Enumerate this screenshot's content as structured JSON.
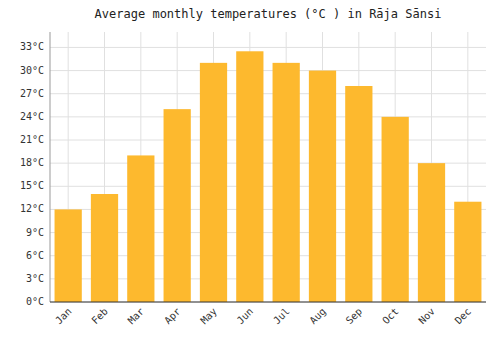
{
  "chart_data": {
    "type": "bar",
    "title": "Average monthly temperatures (°C ) in Rāja Sānsi",
    "categories": [
      "Jan",
      "Feb",
      "Mar",
      "Apr",
      "May",
      "Jun",
      "Jul",
      "Aug",
      "Sep",
      "Oct",
      "Nov",
      "Dec"
    ],
    "values": [
      12,
      14,
      19,
      25,
      31,
      32.5,
      31,
      30,
      28,
      24,
      18,
      13
    ],
    "color": "#FDB92E",
    "ylim": [
      0,
      35
    ],
    "yticks": [
      {
        "value": 0,
        "label": "0°C"
      },
      {
        "value": 3,
        "label": "3°C"
      },
      {
        "value": 6,
        "label": "6°C"
      },
      {
        "value": 9,
        "label": "9°C"
      },
      {
        "value": 12,
        "label": "12°C"
      },
      {
        "value": 15,
        "label": "15°C"
      },
      {
        "value": 18,
        "label": "18°C"
      },
      {
        "value": 21,
        "label": "21°C"
      },
      {
        "value": 24,
        "label": "24°C"
      },
      {
        "value": 27,
        "label": "27°C"
      },
      {
        "value": 30,
        "label": "30°C"
      },
      {
        "value": 33,
        "label": "33°C"
      }
    ],
    "grid": true
  }
}
